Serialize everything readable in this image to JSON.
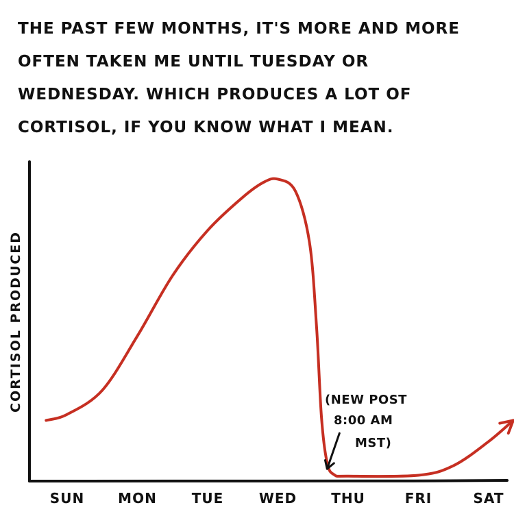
{
  "caption": {
    "lines": [
      "THE PAST FEW MONTHS, IT'S MORE AND MORE",
      "OFTEN TAKEN ME UNTIL TUESDAY OR",
      "WEDNESDAY. WHICH PRODUCES A LOT OF",
      "CORTISOL, IF YOU KNOW WHAT I MEAN."
    ]
  },
  "chart_data": {
    "type": "line",
    "title": "",
    "xlabel": "",
    "ylabel": "CORTISOL PRODUCED",
    "categories": [
      "SUN",
      "MON",
      "TUE",
      "WED",
      "THU",
      "FRI",
      "SAT"
    ],
    "series": [
      {
        "name": "",
        "color": "#c62f22",
        "points": [
          {
            "x": -0.3,
            "y": 19
          },
          {
            "x": 0,
            "y": 21
          },
          {
            "x": 0.5,
            "y": 29
          },
          {
            "x": 1,
            "y": 47
          },
          {
            "x": 1.5,
            "y": 67
          },
          {
            "x": 2,
            "y": 82
          },
          {
            "x": 2.5,
            "y": 93
          },
          {
            "x": 2.8,
            "y": 98
          },
          {
            "x": 3,
            "y": 99
          },
          {
            "x": 3.25,
            "y": 95
          },
          {
            "x": 3.45,
            "y": 78
          },
          {
            "x": 3.55,
            "y": 50
          },
          {
            "x": 3.62,
            "y": 20
          },
          {
            "x": 3.7,
            "y": 5
          },
          {
            "x": 3.8,
            "y": 1
          },
          {
            "x": 4,
            "y": 0.5
          },
          {
            "x": 5,
            "y": 0.8
          },
          {
            "x": 5.5,
            "y": 4
          },
          {
            "x": 6,
            "y": 12
          },
          {
            "x": 6.35,
            "y": 19
          }
        ],
        "arrowhead_at_end": true
      }
    ],
    "annotation": {
      "lines": [
        "(NEW POST",
        "8:00 AM",
        "MST)"
      ],
      "points_to": {
        "x": 3.7,
        "y": 2
      }
    },
    "xlim": [
      -0.3,
      6.45
    ],
    "ylim": [
      0,
      100
    ],
    "grid": false,
    "legend": "none",
    "axis_color": "#111111"
  }
}
